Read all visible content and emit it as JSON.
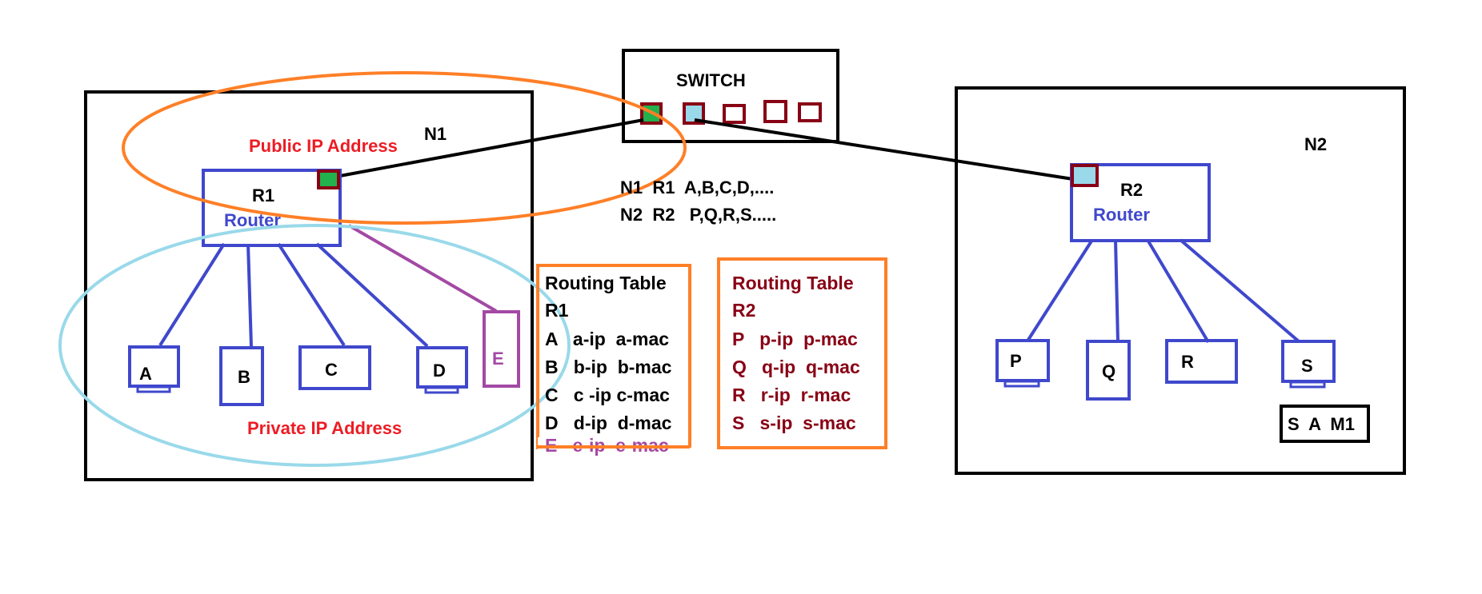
{
  "colors": {
    "black": "#000000",
    "blue": "#3f48cc",
    "red": "#ed1c24",
    "darkred": "#880015",
    "orange": "#ff7f27",
    "lightblue": "#99d9ea",
    "purple": "#a349a4",
    "green": "#22b14c"
  },
  "switch": {
    "label": "SWITCH"
  },
  "network1": {
    "name": "N1",
    "public_label": "Public IP Address",
    "private_label": "Private IP Address",
    "router": {
      "name": "R1",
      "label": "Router"
    },
    "hosts": [
      "A",
      "B",
      "C",
      "D",
      "E"
    ]
  },
  "network2": {
    "name": "N2",
    "router": {
      "name": "R2",
      "label": "Router"
    },
    "hosts": [
      "P",
      "Q",
      "R",
      "S"
    ],
    "note": "S  A  M1"
  },
  "summary": {
    "line1": "N1  R1  A,B,C,D,....",
    "line2": "N2  R2   P,Q,R,S....."
  },
  "routing_tables": [
    {
      "title": "Routing Table",
      "router": "R1",
      "rows": [
        "A   a-ip  a-mac",
        "B   b-ip  b-mac",
        "C   c -ip c-mac",
        "D   d-ip  d-mac",
        "E   e-ip  e-mac"
      ]
    },
    {
      "title": "Routing Table",
      "router": "R2",
      "rows": [
        "P   p-ip  p-mac",
        "Q   q-ip  q-mac",
        "R   r-ip  r-mac",
        "S   s-ip  s-mac"
      ]
    }
  ]
}
